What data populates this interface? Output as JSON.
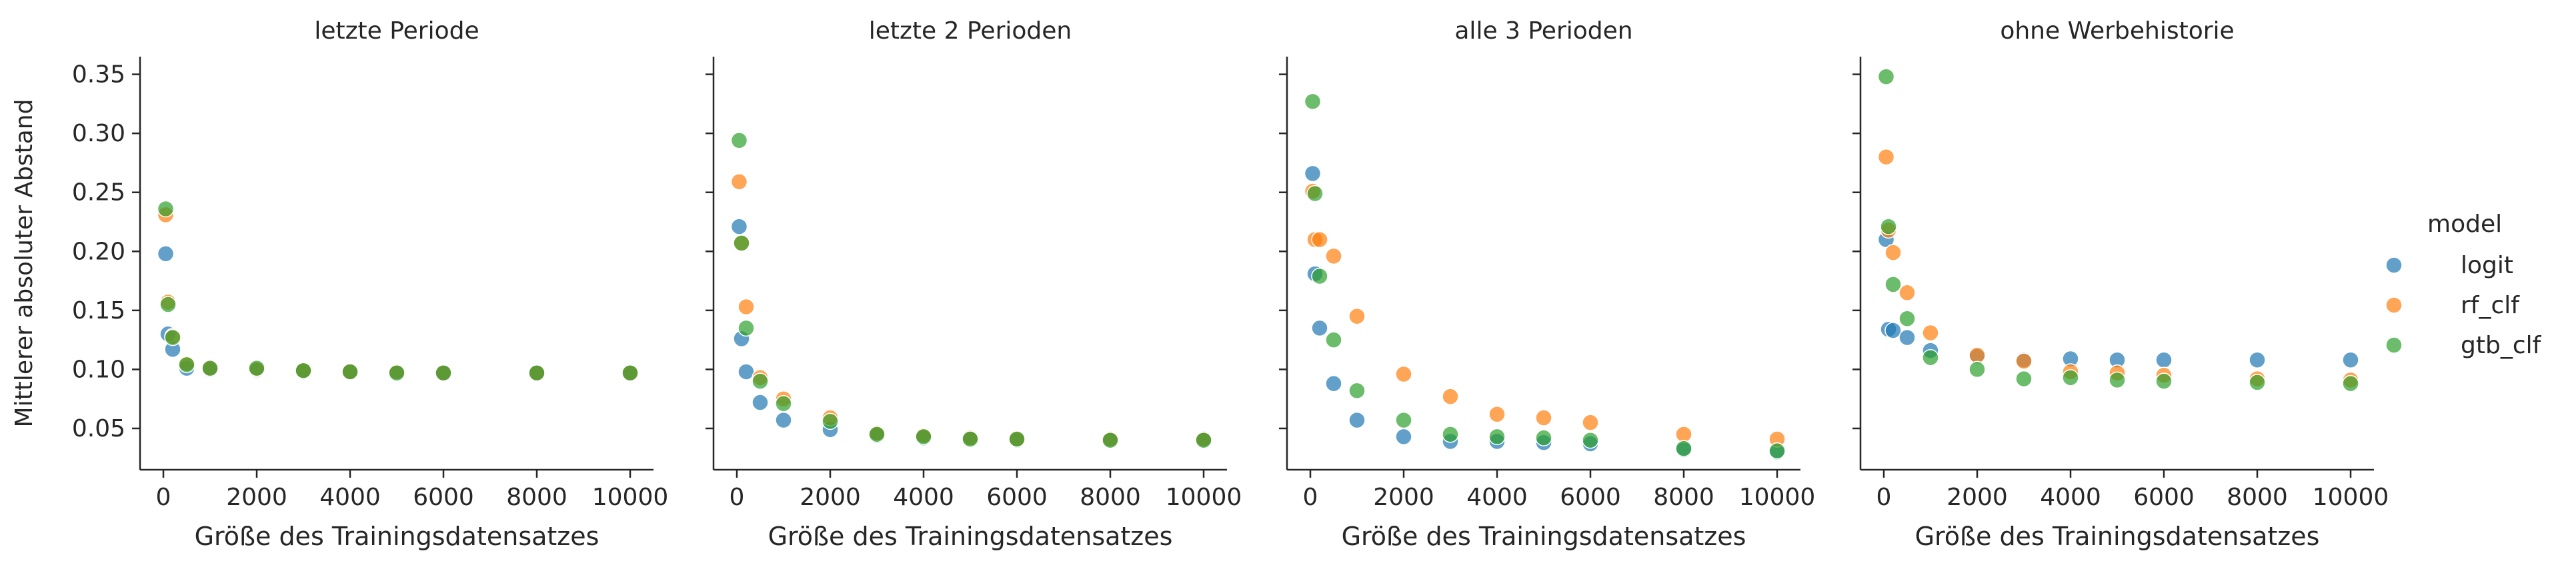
{
  "figure": {
    "ylabel": "Mittlerer absoluter Abstand",
    "legend_title": "model"
  },
  "colors": {
    "logit": "#1f77b4",
    "rf_clf": "#ff7f0e",
    "gtb_clf": "#2ca02c",
    "axis": "#262626"
  },
  "chart_data": [
    {
      "type": "scatter",
      "title": "letzte Periode",
      "xlabel": "Größe des Trainingsdatensatzes",
      "ylabel": "Mittlerer absoluter Abstand",
      "xlim": [
        -500,
        10500
      ],
      "ylim": [
        0.015,
        0.365
      ],
      "xticks": [
        0,
        2000,
        4000,
        6000,
        8000,
        10000
      ],
      "yticks": [
        0.05,
        0.1,
        0.15,
        0.2,
        0.25,
        0.3,
        0.35
      ],
      "series": [
        {
          "name": "logit",
          "x": [
            50,
            100,
            200,
            500,
            1000,
            2000,
            3000,
            4000,
            5000,
            6000,
            8000,
            10000
          ],
          "y": [
            0.198,
            0.13,
            0.117,
            0.101,
            0.1,
            0.099,
            0.098,
            0.098,
            0.097,
            0.097,
            0.097,
            0.097
          ]
        },
        {
          "name": "rf_clf",
          "x": [
            50,
            100,
            200,
            500,
            1000,
            2000,
            3000,
            4000,
            5000,
            6000,
            8000,
            10000
          ],
          "y": [
            0.231,
            0.157,
            0.128,
            0.105,
            0.101,
            0.1,
            0.099,
            0.098,
            0.098,
            0.097,
            0.097,
            0.097
          ]
        },
        {
          "name": "gtb_clf",
          "x": [
            50,
            100,
            200,
            500,
            1000,
            2000,
            3000,
            4000,
            5000,
            6000,
            8000,
            10000
          ],
          "y": [
            0.236,
            0.155,
            0.127,
            0.104,
            0.101,
            0.101,
            0.099,
            0.098,
            0.097,
            0.097,
            0.097,
            0.097
          ]
        }
      ]
    },
    {
      "type": "scatter",
      "title": "letzte 2 Perioden",
      "xlabel": "Größe des Trainingsdatensatzes",
      "ylabel": "",
      "xlim": [
        -500,
        10500
      ],
      "ylim": [
        0.015,
        0.365
      ],
      "xticks": [
        0,
        2000,
        4000,
        6000,
        8000,
        10000
      ],
      "yticks": [
        0.05,
        0.1,
        0.15,
        0.2,
        0.25,
        0.3,
        0.35
      ],
      "series": [
        {
          "name": "logit",
          "x": [
            50,
            100,
            200,
            500,
            1000,
            2000,
            3000,
            4000,
            5000,
            6000,
            8000,
            10000
          ],
          "y": [
            0.221,
            0.126,
            0.098,
            0.072,
            0.057,
            0.049,
            0.044,
            0.042,
            0.041,
            0.04,
            0.04,
            0.04
          ]
        },
        {
          "name": "rf_clf",
          "x": [
            50,
            100,
            200,
            500,
            1000,
            2000,
            3000,
            4000,
            5000,
            6000,
            8000,
            10000
          ],
          "y": [
            0.259,
            0.207,
            0.153,
            0.093,
            0.075,
            0.059,
            0.046,
            0.044,
            0.042,
            0.041,
            0.041,
            0.041
          ]
        },
        {
          "name": "gtb_clf",
          "x": [
            50,
            100,
            200,
            500,
            1000,
            2000,
            3000,
            4000,
            5000,
            6000,
            8000,
            10000
          ],
          "y": [
            0.294,
            0.207,
            0.135,
            0.09,
            0.071,
            0.056,
            0.045,
            0.043,
            0.041,
            0.041,
            0.04,
            0.04
          ]
        }
      ]
    },
    {
      "type": "scatter",
      "title": "alle 3 Perioden",
      "xlabel": "Größe des Trainingsdatensatzes",
      "ylabel": "",
      "xlim": [
        -500,
        10500
      ],
      "ylim": [
        0.015,
        0.365
      ],
      "xticks": [
        0,
        2000,
        4000,
        6000,
        8000,
        10000
      ],
      "yticks": [
        0.05,
        0.1,
        0.15,
        0.2,
        0.25,
        0.3,
        0.35
      ],
      "series": [
        {
          "name": "logit",
          "x": [
            50,
            100,
            200,
            500,
            1000,
            2000,
            3000,
            4000,
            5000,
            6000,
            8000,
            10000
          ],
          "y": [
            0.266,
            0.181,
            0.135,
            0.088,
            0.057,
            0.043,
            0.039,
            0.039,
            0.038,
            0.037,
            0.032,
            0.03
          ]
        },
        {
          "name": "rf_clf",
          "x": [
            50,
            100,
            200,
            500,
            1000,
            2000,
            3000,
            4000,
            5000,
            6000,
            8000,
            10000
          ],
          "y": [
            0.251,
            0.21,
            0.21,
            0.196,
            0.145,
            0.096,
            0.077,
            0.062,
            0.059,
            0.055,
            0.045,
            0.041
          ]
        },
        {
          "name": "gtb_clf",
          "x": [
            50,
            100,
            200,
            500,
            1000,
            2000,
            3000,
            4000,
            5000,
            6000,
            8000,
            10000
          ],
          "y": [
            0.327,
            0.249,
            0.179,
            0.125,
            0.082,
            0.057,
            0.045,
            0.043,
            0.042,
            0.04,
            0.033,
            0.031
          ]
        }
      ]
    },
    {
      "type": "scatter",
      "title": "ohne Werbehistorie",
      "xlabel": "Größe des Trainingsdatensatzes",
      "ylabel": "",
      "xlim": [
        -500,
        10500
      ],
      "ylim": [
        0.015,
        0.365
      ],
      "xticks": [
        0,
        2000,
        4000,
        6000,
        8000,
        10000
      ],
      "yticks": [
        0.05,
        0.1,
        0.15,
        0.2,
        0.25,
        0.3,
        0.35
      ],
      "series": [
        {
          "name": "logit",
          "x": [
            50,
            100,
            200,
            500,
            1000,
            2000,
            3000,
            4000,
            5000,
            6000,
            8000,
            10000
          ],
          "y": [
            0.21,
            0.134,
            0.133,
            0.127,
            0.116,
            0.111,
            0.108,
            0.109,
            0.108,
            0.108,
            0.108,
            0.108
          ]
        },
        {
          "name": "rf_clf",
          "x": [
            50,
            100,
            200,
            500,
            1000,
            2000,
            3000,
            4000,
            5000,
            6000,
            8000,
            10000
          ],
          "y": [
            0.28,
            0.218,
            0.199,
            0.165,
            0.131,
            0.112,
            0.107,
            0.098,
            0.097,
            0.095,
            0.092,
            0.091
          ]
        },
        {
          "name": "gtb_clf",
          "x": [
            50,
            100,
            200,
            500,
            1000,
            2000,
            3000,
            4000,
            5000,
            6000,
            8000,
            10000
          ],
          "y": [
            0.348,
            0.221,
            0.172,
            0.143,
            0.11,
            0.1,
            0.092,
            0.093,
            0.091,
            0.09,
            0.089,
            0.088
          ]
        }
      ]
    }
  ]
}
